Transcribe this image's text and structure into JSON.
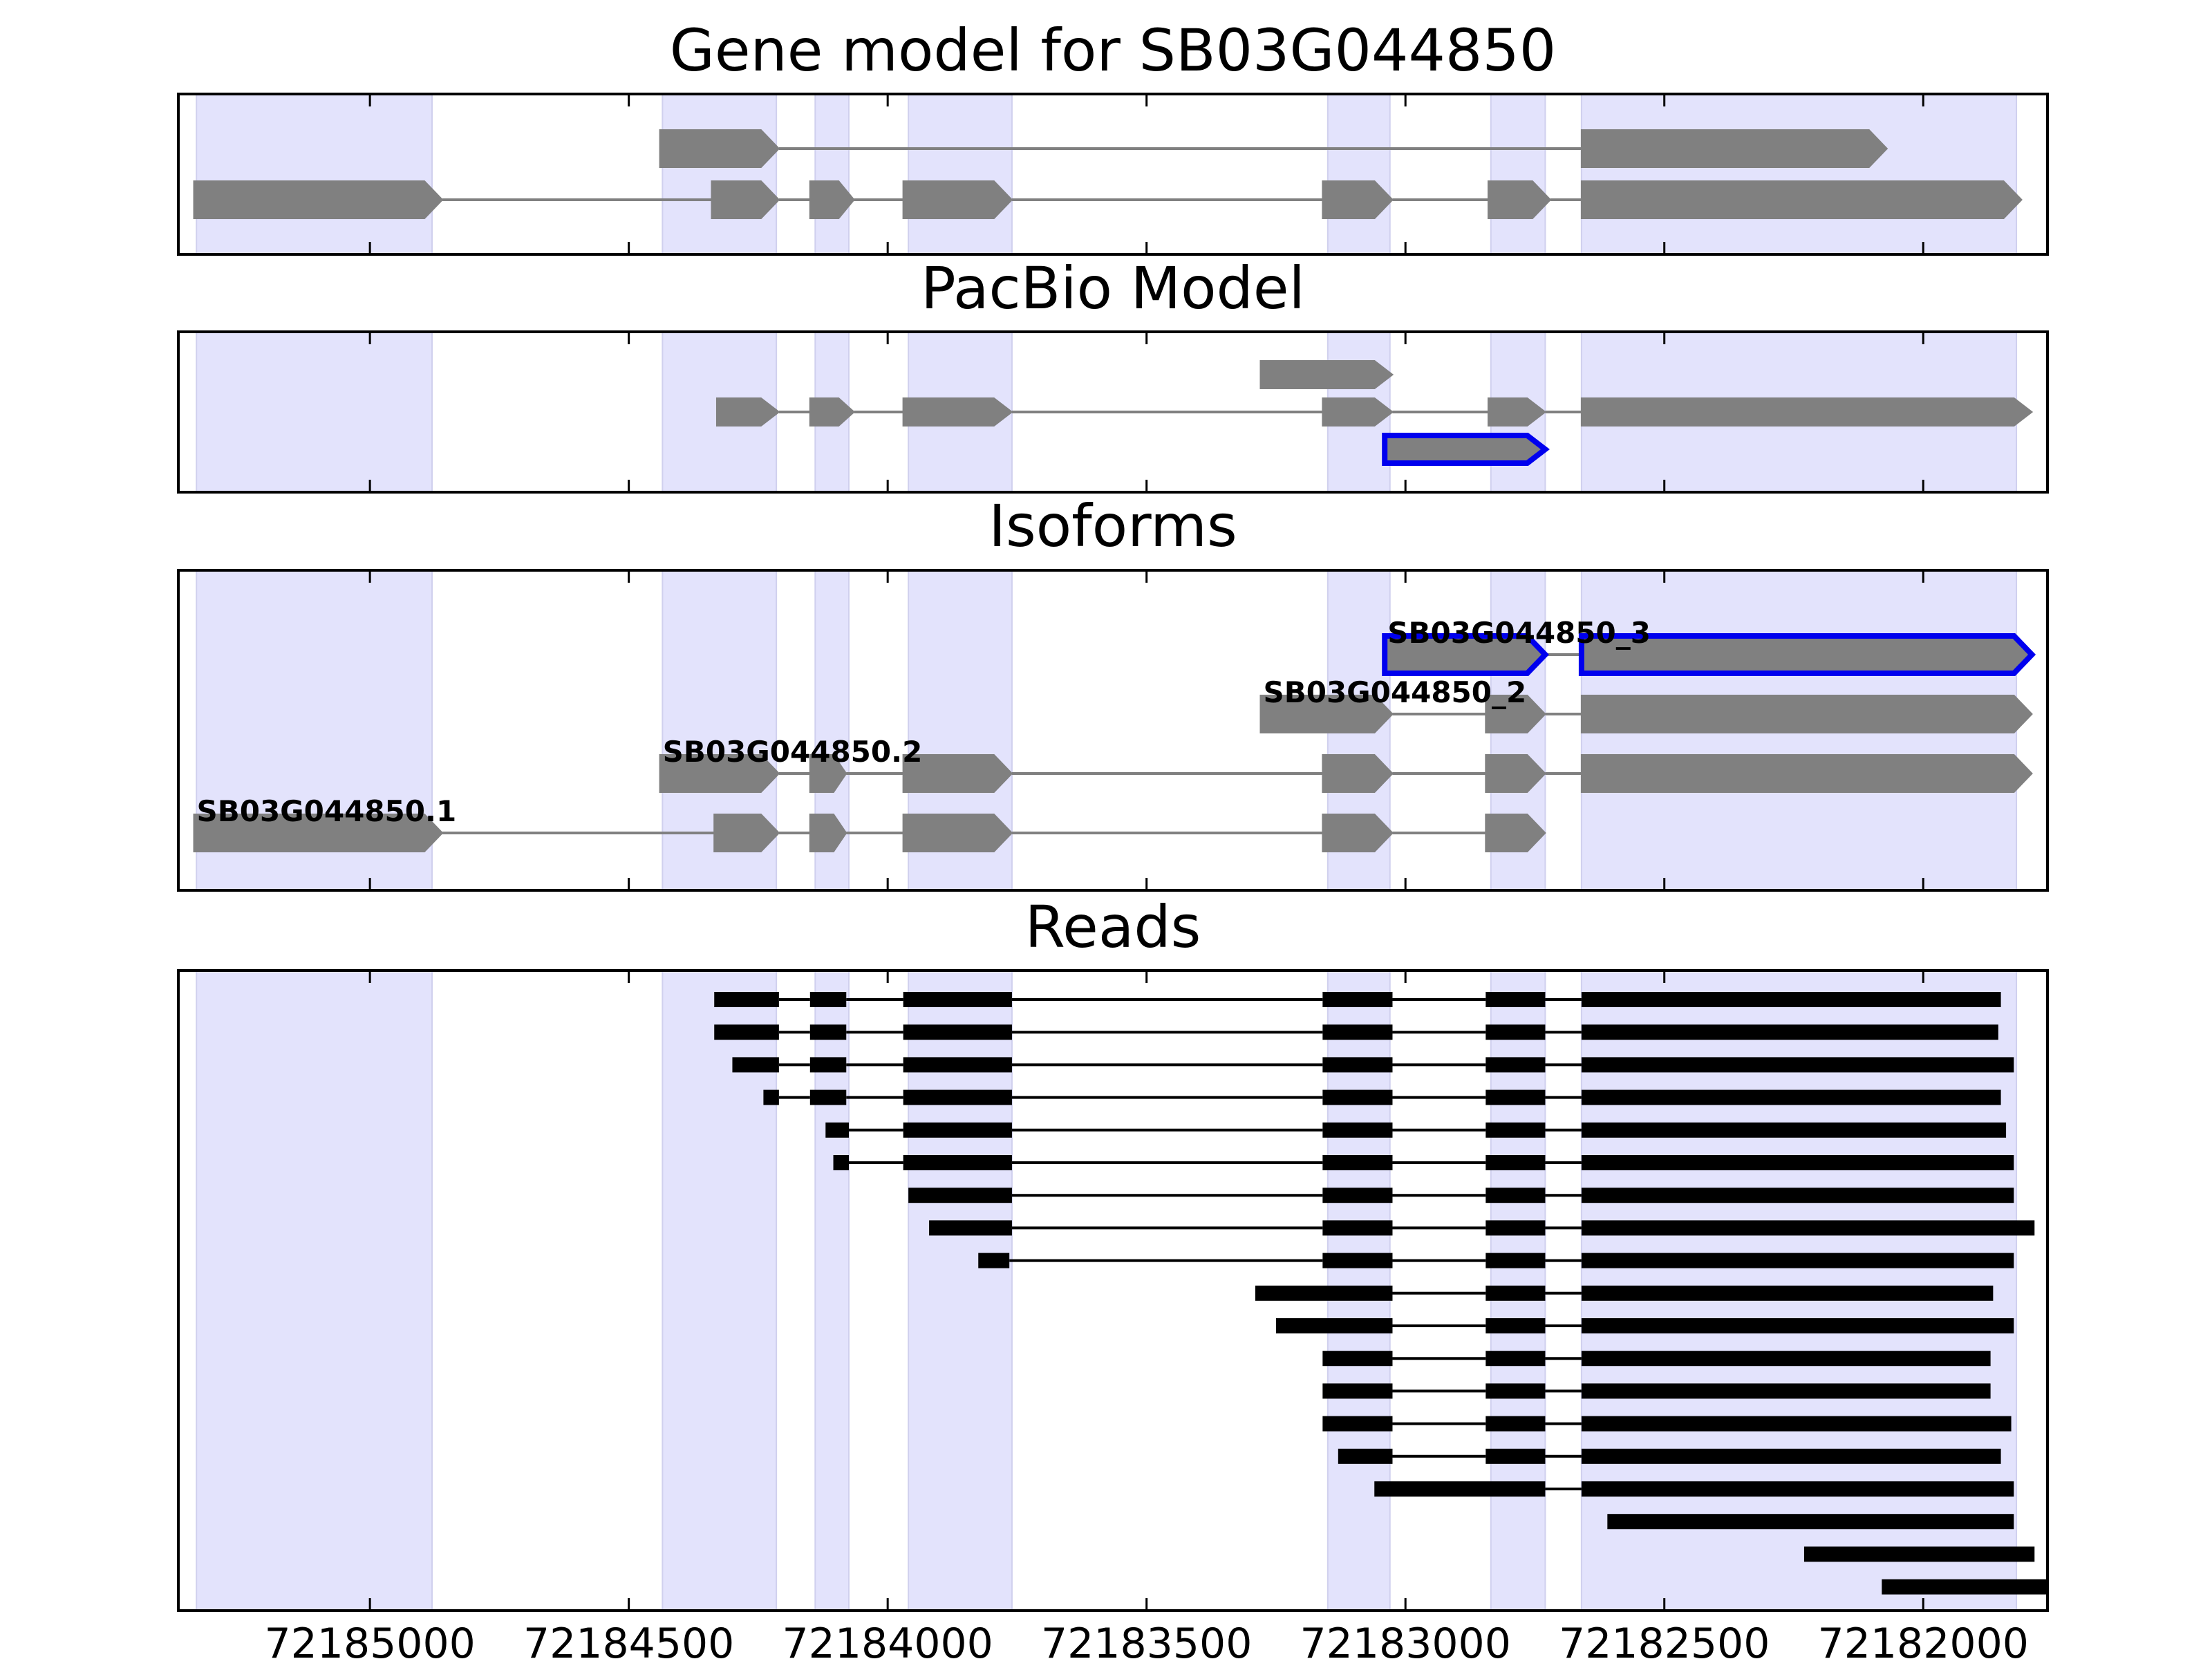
{
  "figure": {
    "background": "#ffffff"
  },
  "chart_data": {
    "type": "gene-structure",
    "x_axis": {
      "reversed": true,
      "range": [
        72185370,
        72181760
      ],
      "ticks": [
        72185000,
        72184500,
        72184000,
        72183500,
        72183000,
        72182500,
        72182000
      ],
      "tick_labels": [
        "72185000",
        "72184500",
        "72184000",
        "72183500",
        "72183000",
        "72182500",
        "72182000"
      ]
    },
    "colors": {
      "exon": "#808080",
      "intron": "#808080",
      "highlight": "#0000ee",
      "read": "#000000",
      "shade": "#e3e3fc"
    },
    "exon_shading": [
      [
        72185335,
        72184880
      ],
      [
        72184435,
        72184215
      ],
      [
        72184140,
        72184075
      ],
      [
        72183960,
        72183760
      ],
      [
        72183150,
        72183030
      ],
      [
        72182835,
        72182730
      ],
      [
        72182660,
        72181820
      ]
    ],
    "panels": [
      {
        "title": "Gene model for SB03G044850",
        "rows": 2,
        "transcripts": [
          {
            "row": 1,
            "label": "",
            "highlight": false,
            "exons": [
              [
                72185340,
                72184860
              ],
              [
                72184340,
                72184210
              ],
              [
                72184150,
                72184065
              ],
              [
                72183970,
                72183760
              ],
              [
                72183160,
                72183025
              ],
              [
                72182840,
                72182720
              ],
              [
                72182660,
                72181810
              ]
            ]
          },
          {
            "row": 0,
            "label": "",
            "highlight": false,
            "exons": [
              [
                72184440,
                72184210
              ],
              [
                72182660,
                72182070
              ]
            ]
          }
        ]
      },
      {
        "title": "PacBio Model",
        "rows": 3,
        "transcripts": [
          {
            "row": 1,
            "label": "",
            "highlight": false,
            "exons": [
              [
                72184330,
                72184210
              ],
              [
                72184150,
                72184065
              ],
              [
                72183970,
                72183760
              ],
              [
                72183160,
                72183025
              ],
              [
                72182840,
                72182730
              ],
              [
                72182660,
                72181790
              ]
            ]
          },
          {
            "row": 0,
            "label": "",
            "highlight": false,
            "exons": [
              [
                72183280,
                72183025
              ]
            ]
          },
          {
            "row": 2,
            "label": "",
            "highlight": true,
            "exons": [
              [
                72183040,
                72182730
              ]
            ]
          }
        ]
      },
      {
        "title": "Isoforms",
        "rows": 4,
        "transcripts": [
          {
            "row": 3,
            "label": "SB03G044850.1",
            "highlight": false,
            "exons": [
              [
                72185340,
                72184860
              ],
              [
                72184335,
                72184210
              ],
              [
                72184150,
                72184080
              ],
              [
                72183970,
                72183760
              ],
              [
                72183160,
                72183025
              ],
              [
                72182845,
                72182730
              ]
            ]
          },
          {
            "row": 2,
            "label": "SB03G044850.2",
            "highlight": false,
            "exons": [
              [
                72184440,
                72184210
              ],
              [
                72184150,
                72184080
              ],
              [
                72183970,
                72183760
              ],
              [
                72183160,
                72183025
              ],
              [
                72182845,
                72182730
              ],
              [
                72182660,
                72181790
              ]
            ]
          },
          {
            "row": 1,
            "label": "SB03G044850_2",
            "highlight": false,
            "exons": [
              [
                72183280,
                72183025
              ],
              [
                72182845,
                72182730
              ],
              [
                72182660,
                72181790
              ]
            ]
          },
          {
            "row": 0,
            "label": "SB03G044850_3",
            "highlight": true,
            "exons": [
              [
                72183040,
                72182730
              ],
              [
                72182660,
                72181790
              ]
            ]
          }
        ]
      },
      {
        "title": "Reads",
        "rows": 19,
        "reads": [
          [
            [
              72184335,
              72184210
            ],
            [
              72184150,
              72184080
            ],
            [
              72183970,
              72183760
            ],
            [
              72183160,
              72183025
            ],
            [
              72182845,
              72182730
            ],
            [
              72182660,
              72181850
            ]
          ],
          [
            [
              72184335,
              72184210
            ],
            [
              72184150,
              72184080
            ],
            [
              72183970,
              72183760
            ],
            [
              72183160,
              72183025
            ],
            [
              72182845,
              72182730
            ],
            [
              72182660,
              72181855
            ]
          ],
          [
            [
              72184300,
              72184210
            ],
            [
              72184150,
              72184080
            ],
            [
              72183970,
              72183760
            ],
            [
              72183160,
              72183025
            ],
            [
              72182845,
              72182730
            ],
            [
              72182660,
              72181825
            ]
          ],
          [
            [
              72184240,
              72184210
            ],
            [
              72184150,
              72184080
            ],
            [
              72183970,
              72183760
            ],
            [
              72183160,
              72183025
            ],
            [
              72182845,
              72182730
            ],
            [
              72182660,
              72181850
            ]
          ],
          [
            [
              72184120,
              72184075
            ],
            [
              72183970,
              72183760
            ],
            [
              72183160,
              72183025
            ],
            [
              72182845,
              72182730
            ],
            [
              72182660,
              72181840
            ]
          ],
          [
            [
              72184105,
              72184075
            ],
            [
              72183970,
              72183760
            ],
            [
              72183160,
              72183025
            ],
            [
              72182845,
              72182730
            ],
            [
              72182660,
              72181825
            ]
          ],
          [
            [
              72183960,
              72183760
            ],
            [
              72183160,
              72183025
            ],
            [
              72182845,
              72182730
            ],
            [
              72182660,
              72181825
            ]
          ],
          [
            [
              72183920,
              72183760
            ],
            [
              72183160,
              72183025
            ],
            [
              72182845,
              72182730
            ],
            [
              72182660,
              72181785
            ]
          ],
          [
            [
              72183825,
              72183765
            ],
            [
              72183160,
              72183025
            ],
            [
              72182845,
              72182730
            ],
            [
              72182660,
              72181825
            ]
          ],
          [
            [
              72183290,
              72183025
            ],
            [
              72182845,
              72182730
            ],
            [
              72182660,
              72181865
            ]
          ],
          [
            [
              72183250,
              72183025
            ],
            [
              72182845,
              72182730
            ],
            [
              72182660,
              72181825
            ]
          ],
          [
            [
              72183160,
              72183025
            ],
            [
              72182845,
              72182730
            ],
            [
              72182660,
              72181870
            ]
          ],
          [
            [
              72183160,
              72183025
            ],
            [
              72182845,
              72182730
            ],
            [
              72182660,
              72181870
            ]
          ],
          [
            [
              72183160,
              72183025
            ],
            [
              72182845,
              72182730
            ],
            [
              72182660,
              72181830
            ]
          ],
          [
            [
              72183130,
              72183025
            ],
            [
              72182845,
              72182730
            ],
            [
              72182660,
              72181850
            ]
          ],
          [
            [
              72183060,
              72182730
            ],
            [
              72182660,
              72181825
            ]
          ],
          [
            [
              72182610,
              72181825
            ]
          ],
          [
            [
              72182230,
              72181785
            ]
          ],
          [
            [
              72182080,
              72181750
            ]
          ]
        ]
      }
    ]
  }
}
